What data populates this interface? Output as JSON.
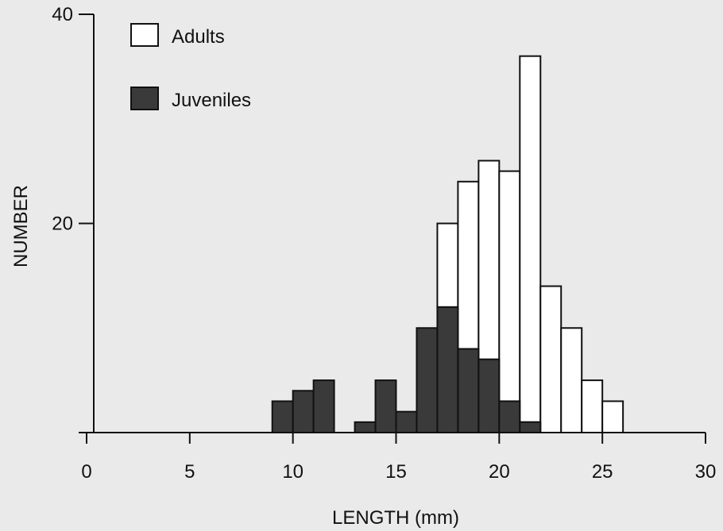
{
  "chart_data": {
    "type": "bar",
    "title": "",
    "xlabel": "LENGTH (mm)",
    "ylabel": "NUMBER",
    "xlim": [
      0,
      30
    ],
    "ylim": [
      0,
      40
    ],
    "x_ticks": [
      "0",
      "5",
      "10",
      "15",
      "20",
      "25",
      "30"
    ],
    "y_ticks": [
      "20",
      "40"
    ],
    "bin_width": 1,
    "bin_starts": [
      9,
      10,
      11,
      13,
      14,
      15,
      16,
      17,
      18,
      19,
      20,
      21,
      22,
      23,
      24,
      25
    ],
    "series": [
      {
        "name": "Adults",
        "values": [
          0,
          0,
          0,
          0,
          0,
          0,
          0,
          8,
          16,
          19,
          22,
          35,
          14,
          10,
          5,
          3
        ]
      },
      {
        "name": "Juveniles",
        "values": [
          3,
          4,
          5,
          1,
          5,
          2,
          10,
          12,
          8,
          7,
          3,
          1,
          0,
          0,
          0,
          0
        ]
      }
    ],
    "stacked": true,
    "legend_position": "top-left",
    "grid": false,
    "colors": {
      "Adults": "#ffffff",
      "Juveniles": "#3a3a3a",
      "outline": "#111111"
    }
  }
}
